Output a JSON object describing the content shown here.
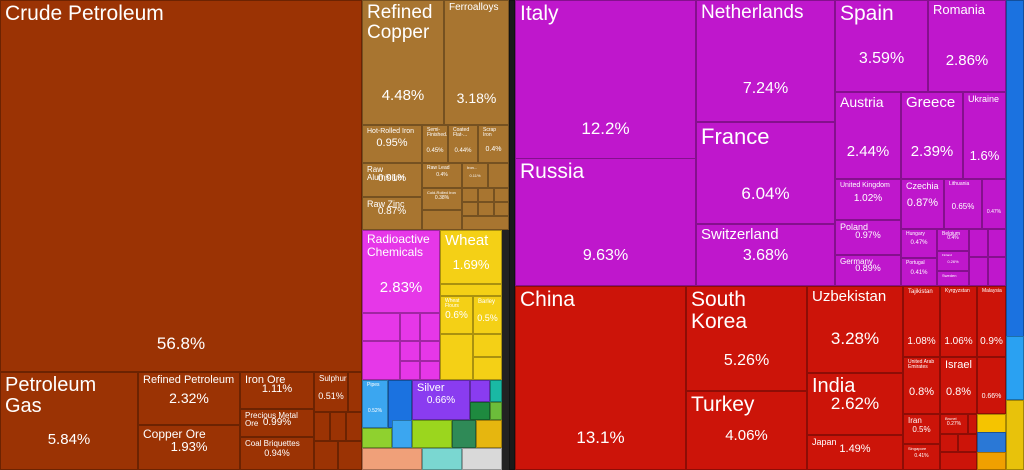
{
  "chart_data": {
    "type": "treemap",
    "products": [
      {
        "name": "Crude Petroleum",
        "value": 56.8,
        "label": "56.8%",
        "group": "mineral",
        "color": "#9b3304"
      },
      {
        "name": "Petroleum Gas",
        "value": 5.84,
        "label": "5.84%",
        "group": "mineral",
        "color": "#9b3304"
      },
      {
        "name": "Refined Petroleum",
        "value": 2.32,
        "label": "2.32%",
        "group": "mineral",
        "color": "#9b3304"
      },
      {
        "name": "Copper Ore",
        "value": 1.93,
        "label": "1.93%",
        "group": "mineral",
        "color": "#9b3304"
      },
      {
        "name": "Iron Ore",
        "value": 1.11,
        "label": "1.11%",
        "group": "mineral",
        "color": "#9b3304"
      },
      {
        "name": "Precious Metal Ore",
        "value": 0.99,
        "label": "0.99%",
        "group": "mineral",
        "color": "#9b3304"
      },
      {
        "name": "Coal Briquettes",
        "value": 0.94,
        "label": "0.94%",
        "group": "mineral",
        "color": "#9b3304"
      },
      {
        "name": "Sulphur",
        "value": 0.51,
        "label": "0.51%",
        "group": "mineral",
        "color": "#9b3304"
      },
      {
        "name": "Refined Copper",
        "value": 4.48,
        "label": "4.48%",
        "group": "metals",
        "color": "#a87530"
      },
      {
        "name": "Ferroalloys",
        "value": 3.18,
        "label": "3.18%",
        "group": "metals",
        "color": "#a87530"
      },
      {
        "name": "Hot-Rolled Iron",
        "value": 0.95,
        "label": "0.95%",
        "group": "metals",
        "color": "#a87530"
      },
      {
        "name": "Semi-Finished...",
        "value": 0.45,
        "label": "0.45%",
        "group": "metals",
        "color": "#a87530"
      },
      {
        "name": "Coated Flat-...",
        "value": 0.44,
        "label": "0.44%",
        "group": "metals",
        "color": "#a87530"
      },
      {
        "name": "Scrap Iron",
        "value": 0.4,
        "label": "0.4%",
        "group": "metals",
        "color": "#a87530"
      },
      {
        "name": "Raw Aluminium",
        "value": 0.91,
        "label": "0.91%",
        "group": "metals",
        "color": "#a87530"
      },
      {
        "name": "Raw Lead",
        "value": 0.4,
        "label": "0.4%",
        "group": "metals",
        "color": "#a87530"
      },
      {
        "name": "Iron...",
        "value": 0.11,
        "label": "0.11%",
        "group": "metals",
        "color": "#a87530"
      },
      {
        "name": "Raw Zinc",
        "value": 0.87,
        "label": "0.87%",
        "group": "metals",
        "color": "#a87530"
      },
      {
        "name": "Cold-Rolled Iron",
        "value": 0.38,
        "label": "0.38%",
        "group": "metals",
        "color": "#a87530"
      },
      {
        "name": "Radioactive Chemicals",
        "value": 2.83,
        "label": "2.83%",
        "group": "chemicals",
        "color": "#e637e8"
      },
      {
        "name": "Wheat",
        "value": 1.69,
        "label": "1.69%",
        "group": "vegetable",
        "color": "#f4d016"
      },
      {
        "name": "Wheat Flours",
        "value": 0.6,
        "label": "0.6%",
        "group": "vegetable",
        "color": "#f4d016"
      },
      {
        "name": "Barley",
        "value": 0.5,
        "label": "0.5%",
        "group": "vegetable",
        "color": "#f4d016"
      },
      {
        "name": "Silver",
        "value": 0.66,
        "label": "0.66%",
        "group": "precious",
        "color": "#8a3cf0"
      },
      {
        "name": "Pipes",
        "value": 0.52,
        "label": "0.52%",
        "group": "machines",
        "color": "#3ba6f0"
      }
    ],
    "destinations": [
      {
        "name": "Italy",
        "value": 12.2,
        "label": "12.2%",
        "region": "europe",
        "color": "#bf17cc"
      },
      {
        "name": "Russia",
        "value": 9.63,
        "label": "9.63%",
        "region": "europe",
        "color": "#bf17cc"
      },
      {
        "name": "Netherlands",
        "value": 7.24,
        "label": "7.24%",
        "region": "europe",
        "color": "#bf17cc"
      },
      {
        "name": "France",
        "value": 6.04,
        "label": "6.04%",
        "region": "europe",
        "color": "#bf17cc"
      },
      {
        "name": "Switzerland",
        "value": 3.68,
        "label": "3.68%",
        "region": "europe",
        "color": "#bf17cc"
      },
      {
        "name": "Spain",
        "value": 3.59,
        "label": "3.59%",
        "region": "europe",
        "color": "#bf17cc"
      },
      {
        "name": "Romania",
        "value": 2.86,
        "label": "2.86%",
        "region": "europe",
        "color": "#bf17cc"
      },
      {
        "name": "Austria",
        "value": 2.44,
        "label": "2.44%",
        "region": "europe",
        "color": "#bf17cc"
      },
      {
        "name": "Greece",
        "value": 2.39,
        "label": "2.39%",
        "region": "europe",
        "color": "#bf17cc"
      },
      {
        "name": "Ukraine",
        "value": 1.6,
        "label": "1.6%",
        "region": "europe",
        "color": "#bf17cc"
      },
      {
        "name": "United Kingdom",
        "value": 1.02,
        "label": "1.02%",
        "region": "europe",
        "color": "#bf17cc"
      },
      {
        "name": "Czechia",
        "value": 0.87,
        "label": "0.87%",
        "region": "europe",
        "color": "#bf17cc"
      },
      {
        "name": "Lithuania",
        "value": 0.65,
        "label": "0.65%",
        "region": "europe",
        "color": "#bf17cc"
      },
      {
        "name": "Poland",
        "value": 0.97,
        "label": "0.97%",
        "region": "europe",
        "color": "#bf17cc"
      },
      {
        "name": "Hungary",
        "value": 0.47,
        "label": "0.47%",
        "region": "europe",
        "color": "#bf17cc"
      },
      {
        "name": "Belgium",
        "value": 0.4,
        "label": "0.4%",
        "region": "europe",
        "color": "#bf17cc"
      },
      {
        "name": "Germany",
        "value": 0.89,
        "label": "0.89%",
        "region": "europe",
        "color": "#bf17cc"
      },
      {
        "name": "Portugal",
        "value": 0.41,
        "label": "0.41%",
        "region": "europe",
        "color": "#bf17cc"
      },
      {
        "name": "Finland",
        "value": 0.26,
        "label": "0.26%",
        "region": "europe",
        "color": "#bf17cc"
      },
      {
        "name": "Sweden",
        "value": null,
        "label": "",
        "region": "europe",
        "color": "#bf17cc"
      },
      {
        "name": "China",
        "value": 13.1,
        "label": "13.1%",
        "region": "asia",
        "color": "#cc1409"
      },
      {
        "name": "South Korea",
        "value": 5.26,
        "label": "5.26%",
        "region": "asia",
        "color": "#cc1409"
      },
      {
        "name": "Turkey",
        "value": 4.06,
        "label": "4.06%",
        "region": "asia",
        "color": "#cc1409"
      },
      {
        "name": "Uzbekistan",
        "value": 3.28,
        "label": "3.28%",
        "region": "asia",
        "color": "#cc1409"
      },
      {
        "name": "India",
        "value": 2.62,
        "label": "2.62%",
        "region": "asia",
        "color": "#cc1409"
      },
      {
        "name": "Japan",
        "value": 1.49,
        "label": "1.49%",
        "region": "asia",
        "color": "#cc1409"
      },
      {
        "name": "Tajikistan",
        "value": 1.08,
        "label": "1.08%",
        "region": "asia",
        "color": "#cc1409"
      },
      {
        "name": "Kyrgyzstan",
        "value": 1.06,
        "label": "1.06%",
        "region": "asia",
        "color": "#cc1409"
      },
      {
        "name": "Malaysia",
        "value": 0.9,
        "label": "0.9%",
        "region": "asia",
        "color": "#cc1409"
      },
      {
        "name": "United Arab Emirates",
        "value": 0.8,
        "label": "0.8%",
        "region": "asia",
        "color": "#cc1409"
      },
      {
        "name": "Israel",
        "value": 0.8,
        "label": "0.8%",
        "region": "asia",
        "color": "#cc1409"
      },
      {
        "name": "Iran",
        "value": 0.5,
        "label": "0.5%",
        "region": "asia",
        "color": "#cc1409"
      },
      {
        "name": "Brunei",
        "value": 0.27,
        "label": "0.27%",
        "region": "asia",
        "color": "#cc1409"
      },
      {
        "name": "Singapore",
        "value": 0.41,
        "label": "0.41%",
        "region": "asia",
        "color": "#cc1409"
      },
      {
        "name": "",
        "value": 0.66,
        "label": "0.66%",
        "region": "asia",
        "color": "#cc1409"
      },
      {
        "name": "",
        "value": 0.47,
        "label": "0.47%",
        "region": "europe",
        "color": "#bf17cc"
      }
    ],
    "group_colors": {
      "mineral": "#9b3304",
      "metals": "#a87530",
      "chemicals": "#e637e8",
      "vegetable": "#f4d016",
      "precious": "#8a3cf0",
      "machines": "#3ba6f0",
      "europe": "#bf17cc",
      "asia": "#cc1409",
      "americas": "#1b72e0",
      "africa": "#f5c400"
    }
  }
}
